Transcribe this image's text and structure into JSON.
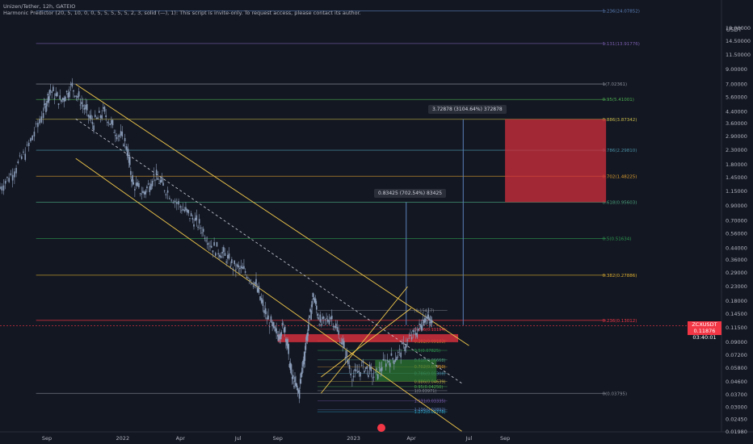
{
  "header": {
    "title": "Unizen/Tether, 12h, GATEIO",
    "indicator": "Harmonic Predictor (20, 5, 10, 0, 0, 5, 5, 5, 5, 5, 2, 3, solid (—), 1): This script is invite-only. To request access, please contact its author."
  },
  "currency_label": "USDT",
  "price_tag": {
    "symbol": "ZCXUSDT",
    "price": "0.11876",
    "countdown": "03:40:01"
  },
  "measure_tips": [
    {
      "text": "3.72878 (3104.64%) 372878"
    },
    {
      "text": "0.83425 (702.54%) 83425"
    }
  ],
  "colors": {
    "background": "#131722",
    "candle": "#8a9cb8",
    "channel": "#f2c94c",
    "bull_box": "#2e7d32",
    "bear_box": "#d32f3c",
    "price_line": "#f23645"
  },
  "chart_data": {
    "type": "candlestick",
    "y_scale": "log",
    "ylim": [
      0.0198,
      29
    ],
    "y_ticks": [
      "22.00000",
      "18.00000",
      "14.50000",
      "11.50000",
      "9.00000",
      "7.00000",
      "5.60000",
      "4.40000",
      "3.60000",
      "2.90000",
      "2.30000",
      "1.80000",
      "1.45000",
      "1.15000",
      "0.90000",
      "0.70000",
      "0.56000",
      "0.44000",
      "0.36000",
      "0.29000",
      "0.23000",
      "0.18000",
      "0.14500",
      "0.11500",
      "0.09000",
      "0.07200",
      "0.05800",
      "0.04600",
      "0.03700",
      "0.03000",
      "0.02450",
      "0.01980"
    ],
    "x_ticks": [
      "Sep",
      "2022",
      "Apr",
      "Jul",
      "Sep",
      "2023",
      "Apr",
      "Jul",
      "Sep"
    ],
    "fib_levels": [
      {
        "label": "1.236(24.07852)",
        "price": 24.0785,
        "color": "#5b7fb8"
      },
      {
        "label": "1.131(13.91776)",
        "price": 13.9178,
        "color": "#7b5fb0"
      },
      {
        "label": "1(7.02361)",
        "price": 7.0236,
        "color": "#8a8f99"
      },
      {
        "label": "0.95(5.41001)",
        "price": 5.41,
        "color": "#4caf50"
      },
      {
        "label": "0.886(3.87342)",
        "price": 3.8734,
        "color": "#c6b94a"
      },
      {
        "label": "0.786(2.29810)",
        "price": 2.2981,
        "color": "#4a90a4"
      },
      {
        "label": "0.702(1.48225)",
        "price": 1.4823,
        "color": "#e0a030"
      },
      {
        "label": "0.618(0.95603)",
        "price": 0.956,
        "color": "#4aa07a"
      },
      {
        "label": "0.5(0.51634)",
        "price": 0.5163,
        "color": "#2e9d50"
      },
      {
        "label": "0.382(0.27886)",
        "price": 0.2789,
        "color": "#e0b030"
      },
      {
        "label": "0.236(0.13012)",
        "price": 0.1301,
        "color": "#f23645"
      },
      {
        "label": "0(0.03795)",
        "price": 0.03795,
        "color": "#8a8f99"
      }
    ],
    "small_fib_levels": [
      {
        "label": "(0.15417)",
        "price": 0.1542,
        "color": "#8a8f99"
      },
      {
        "label": "0.236(0.11194)",
        "price": 0.1119,
        "color": "#f23645"
      },
      {
        "label": "0.382(0.09183)",
        "price": 0.0918,
        "color": "#e0b030"
      },
      {
        "label": "0.5(0.07825)",
        "price": 0.0783,
        "color": "#2e9d50"
      },
      {
        "label": "0.618(0.06668)",
        "price": 0.0667,
        "color": "#4aa07a"
      },
      {
        "label": "0.702(0.05950)",
        "price": 0.0595,
        "color": "#e0a030"
      },
      {
        "label": "0.786(0.05308)",
        "price": 0.0531,
        "color": "#4a90a4"
      },
      {
        "label": "0.886(0.04639)",
        "price": 0.0464,
        "color": "#c6b94a"
      },
      {
        "label": "0.95(0.04250)",
        "price": 0.0425,
        "color": "#4caf50"
      },
      {
        "label": "1(0.03971)",
        "price": 0.0397,
        "color": "#8a8f99"
      },
      {
        "label": "1.131(0.03335)",
        "price": 0.0334,
        "color": "#7b5fb0"
      },
      {
        "label": "1.236(0.02892)",
        "price": 0.0289,
        "color": "#5b7fb8"
      },
      {
        "label": "1.272(0.02778)",
        "price": 0.0278,
        "color": "#2aa0c0"
      }
    ],
    "current_price": 0.11876,
    "price_path": [
      [
        0.0,
        1.2
      ],
      [
        0.02,
        1.6
      ],
      [
        0.04,
        2.4
      ],
      [
        0.06,
        4.2
      ],
      [
        0.07,
        6.4
      ],
      [
        0.085,
        5.2
      ],
      [
        0.1,
        6.8
      ],
      [
        0.115,
        5.0
      ],
      [
        0.13,
        3.6
      ],
      [
        0.145,
        4.4
      ],
      [
        0.16,
        3.2
      ],
      [
        0.175,
        2.6
      ],
      [
        0.185,
        1.3
      ],
      [
        0.2,
        1.1
      ],
      [
        0.215,
        1.5
      ],
      [
        0.23,
        1.2
      ],
      [
        0.25,
        0.9
      ],
      [
        0.265,
        0.75
      ],
      [
        0.28,
        0.62
      ],
      [
        0.295,
        0.45
      ],
      [
        0.31,
        0.4
      ],
      [
        0.325,
        0.32
      ],
      [
        0.34,
        0.3
      ],
      [
        0.355,
        0.24
      ],
      [
        0.37,
        0.14
      ],
      [
        0.385,
        0.1
      ],
      [
        0.395,
        0.12
      ],
      [
        0.405,
        0.05
      ],
      [
        0.415,
        0.038
      ],
      [
        0.425,
        0.09
      ],
      [
        0.435,
        0.2
      ],
      [
        0.445,
        0.12
      ],
      [
        0.46,
        0.14
      ],
      [
        0.475,
        0.09
      ],
      [
        0.49,
        0.05
      ],
      [
        0.505,
        0.06
      ],
      [
        0.52,
        0.05
      ],
      [
        0.535,
        0.065
      ],
      [
        0.55,
        0.07
      ],
      [
        0.565,
        0.09
      ],
      [
        0.58,
        0.11
      ],
      [
        0.59,
        0.14
      ],
      [
        0.6,
        0.12
      ]
    ]
  }
}
